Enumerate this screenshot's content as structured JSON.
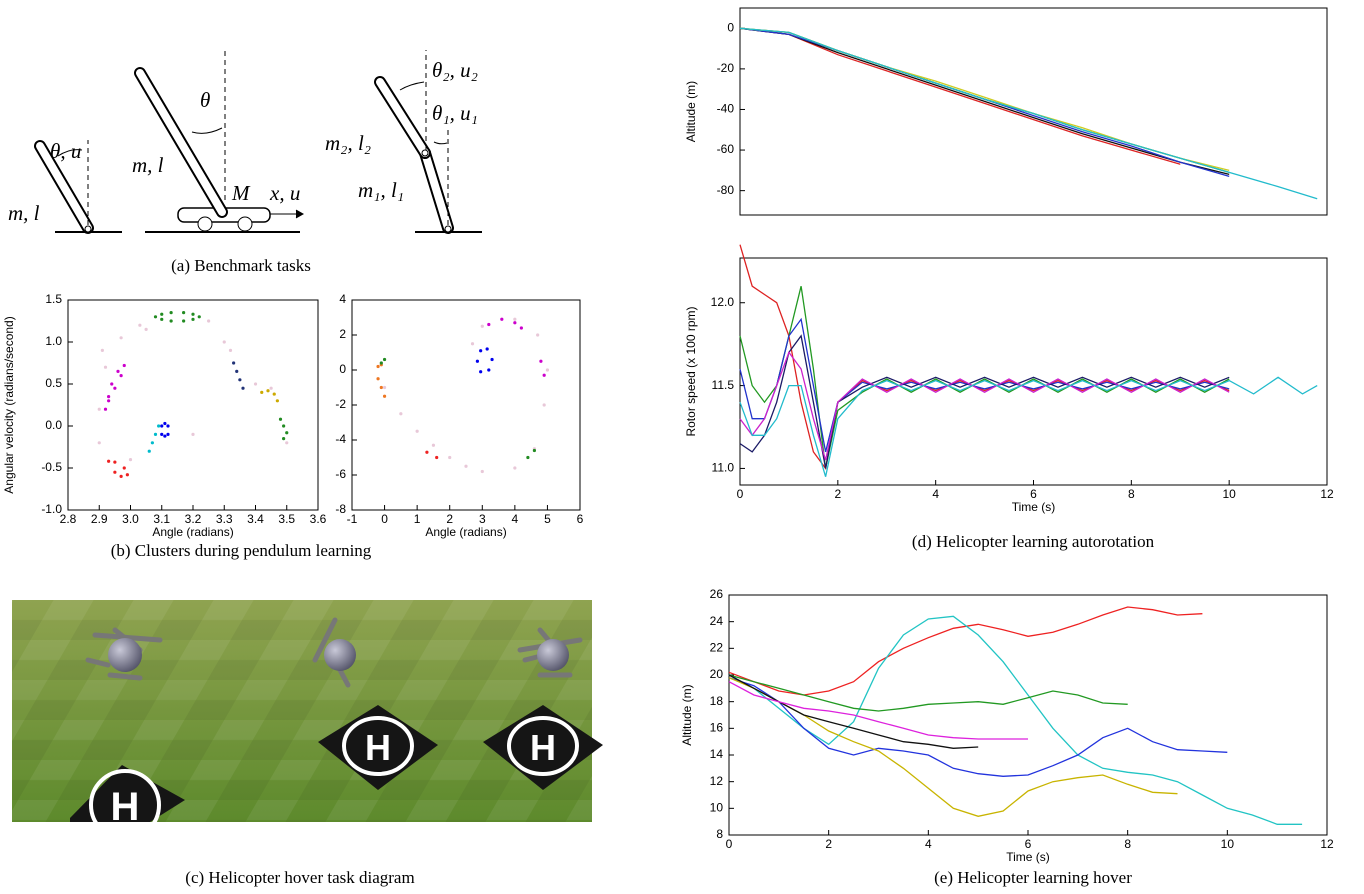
{
  "captions": {
    "a": "(a) Benchmark tasks",
    "b": "(b) Clusters during pendulum learning",
    "c": "(c) Helicopter hover task diagram",
    "d": "(d) Helicopter learning autorotation",
    "e": "(e) Helicopter learning hover"
  },
  "diagram": {
    "labels": [
      "θ, u",
      "m, l",
      "θ",
      "m, l",
      "M",
      "x, u",
      "θ₂, u₂",
      "θ₁, u₁",
      "m₂, l₂",
      "m₁, l₁"
    ]
  },
  "chart_data": [
    {
      "type": "scatter",
      "ylabel": "Angular velocity (radians/second)",
      "xlabel": "Angle (radians)",
      "xlim": [
        2.8,
        3.6
      ],
      "ylim": [
        -1,
        1.5
      ],
      "xticks": [
        2.8,
        2.9,
        {
          "value": 3,
          "label": "3.0"
        },
        3.1,
        3.2,
        3.3,
        3.4,
        3.5,
        3.6
      ],
      "yticks": [
        {
          "value": -1,
          "label": "-1.0"
        },
        -0.5,
        {
          "value": 0,
          "label": "0.0"
        },
        0.5,
        {
          "value": 1,
          "label": "1.0"
        },
        1.5
      ],
      "series": [
        {
          "color": "#e8c8d8",
          "x": [
            2.9,
            2.91,
            2.97,
            3.03,
            3.25,
            3.3,
            3.32,
            3.4,
            3.45,
            3.5,
            2.9,
            3.0,
            3.2,
            2.92,
            3.05
          ],
          "values": [
            0.2,
            0.9,
            1.05,
            1.2,
            1.25,
            1.0,
            0.9,
            0.5,
            0.45,
            -0.2,
            -0.2,
            -0.4,
            -0.1,
            0.7,
            1.15
          ]
        },
        {
          "color": "#228b22",
          "x": [
            3.08,
            3.1,
            3.13,
            3.17,
            3.2,
            3.22,
            3.2,
            3.17,
            3.13,
            3.1
          ],
          "values": [
            1.3,
            1.33,
            1.35,
            1.35,
            1.33,
            1.3,
            1.27,
            1.25,
            1.25,
            1.27
          ]
        },
        {
          "color": "#cc00cc",
          "x": [
            2.92,
            2.93,
            2.95,
            2.97,
            2.98,
            2.96,
            2.94,
            2.93
          ],
          "values": [
            0.2,
            0.3,
            0.45,
            0.6,
            0.72,
            0.65,
            0.5,
            0.35
          ]
        },
        {
          "color": "#0000ee",
          "x": [
            3.1,
            3.1,
            3.11,
            3.12,
            3.12,
            3.11
          ],
          "values": [
            -0.1,
            0.0,
            0.03,
            0.0,
            -0.1,
            -0.12
          ]
        },
        {
          "color": "#ee2222",
          "x": [
            2.93,
            2.95,
            2.98,
            2.99,
            2.97,
            2.95
          ],
          "values": [
            -0.42,
            -0.43,
            -0.5,
            -0.58,
            -0.6,
            -0.55
          ]
        },
        {
          "color": "#00bbcc",
          "x": [
            3.06,
            3.07,
            3.08,
            3.09
          ],
          "values": [
            -0.3,
            -0.2,
            -0.1,
            0.0
          ]
        },
        {
          "color": "#223377",
          "x": [
            3.33,
            3.34,
            3.35,
            3.36
          ],
          "values": [
            0.75,
            0.65,
            0.55,
            0.45
          ]
        },
        {
          "color": "#ccaa00",
          "x": [
            3.42,
            3.44,
            3.46,
            3.47
          ],
          "values": [
            0.4,
            0.42,
            0.38,
            0.3
          ]
        },
        {
          "color": "#228b22",
          "x": [
            3.48,
            3.49,
            3.5,
            3.49
          ],
          "values": [
            0.08,
            0.0,
            -0.08,
            -0.15
          ]
        }
      ]
    },
    {
      "type": "scatter",
      "xlabel": "Angle (radians)",
      "xlim": [
        -1,
        6
      ],
      "ylim": [
        -8,
        4
      ],
      "xticks": [
        -1,
        0,
        1,
        2,
        3,
        4,
        5,
        6
      ],
      "yticks": [
        -8,
        -6,
        -4,
        -2,
        0,
        2,
        4
      ],
      "series": [
        {
          "color": "#e8c8d8",
          "x": [
            0,
            0.5,
            1,
            2,
            3,
            4,
            4.6,
            4.9,
            5,
            4.7,
            4,
            3,
            2.7,
            1.5,
            2.5
          ],
          "values": [
            -1,
            -2.5,
            -3.5,
            -5,
            -5.8,
            -5.6,
            -4.5,
            -2,
            0,
            2,
            2.9,
            2.5,
            1.5,
            -4.3,
            -5.5
          ]
        },
        {
          "color": "#0000ee",
          "x": [
            2.85,
            2.95,
            3.15,
            3.3,
            3.2,
            2.95
          ],
          "values": [
            0.5,
            1.1,
            1.2,
            0.6,
            0,
            -0.1
          ]
        },
        {
          "color": "#cc00cc",
          "x": [
            3.2,
            3.6,
            4.0,
            4.2,
            4.8,
            4.9
          ],
          "values": [
            2.6,
            2.9,
            2.7,
            2.4,
            0.5,
            -0.3
          ]
        },
        {
          "color": "#ee7722",
          "x": [
            -0.2,
            -0.1,
            0.0,
            -0.1,
            -0.2
          ],
          "values": [
            -0.5,
            -1,
            -1.5,
            0.3,
            0.2
          ]
        },
        {
          "color": "#228b22",
          "x": [
            -0.1,
            0,
            4.4,
            4.6
          ],
          "values": [
            0.4,
            0.6,
            -5,
            -4.6
          ]
        },
        {
          "color": "#ee2222",
          "x": [
            1.3,
            1.6
          ],
          "values": [
            -4.7,
            -5
          ]
        }
      ]
    },
    {
      "type": "line",
      "ylabel": "Altitude (m)",
      "xlim": [
        0,
        12
      ],
      "ylim": [
        -92,
        10
      ],
      "yticks": [
        0,
        -20,
        -40,
        -60,
        -80
      ],
      "x": [
        0,
        1,
        2,
        3,
        4,
        5,
        6,
        7,
        8,
        9,
        10,
        11,
        11.8
      ],
      "series": [
        {
          "color": "#dd2222",
          "values": [
            0,
            -3,
            -13,
            -21,
            -29,
            -37,
            -45,
            -53,
            -60,
            -67,
            null,
            null,
            null
          ]
        },
        {
          "color": "#111111",
          "values": [
            0,
            -3,
            -12,
            -20,
            -28,
            -36,
            -44,
            -52,
            -59,
            -66,
            -72,
            null,
            null
          ]
        },
        {
          "color": "#2233cc",
          "values": [
            0,
            -3,
            -11,
            -19,
            -27,
            -35,
            -43,
            -51,
            -58,
            -66,
            -73,
            null,
            null
          ]
        },
        {
          "color": "#229922",
          "values": [
            0,
            -2,
            -11,
            -19,
            -27,
            -35,
            -42,
            -50,
            -57,
            -64,
            -71,
            null,
            null
          ]
        },
        {
          "color": "#cccc22",
          "values": [
            0,
            -2,
            -11,
            -19,
            -26,
            -34,
            -42,
            -49,
            -57,
            -64,
            -70,
            null,
            null
          ]
        },
        {
          "color": "#22bbcc",
          "values": [
            0,
            -2,
            -11,
            -19,
            -27,
            -35,
            -42,
            -50,
            -57,
            -64,
            -71,
            -78,
            -84
          ]
        }
      ]
    },
    {
      "type": "line",
      "ylabel": "Rotor speed (x 100 rpm)",
      "xlabel": "Time (s)",
      "xlim": [
        0,
        12
      ],
      "ylim": [
        10.9,
        12.27
      ],
      "xticks": [
        0,
        2,
        4,
        6,
        8,
        10,
        12
      ],
      "yticks": [
        {
          "value": 11,
          "label": "11.0"
        },
        11.5,
        {
          "value": 12,
          "label": "12.0"
        }
      ],
      "x": [
        0,
        0.25,
        0.5,
        0.75,
        1,
        1.25,
        1.5,
        1.75,
        2,
        2.5,
        3,
        3.5,
        4,
        4.5,
        5,
        5.5,
        6,
        6.5,
        7,
        7.5,
        8,
        8.5,
        9,
        9.5,
        10,
        10.5,
        11,
        11.5,
        11.8
      ],
      "series": [
        {
          "color": "#dd2222",
          "values": [
            12.35,
            12.1,
            12.05,
            12.0,
            11.8,
            11.4,
            11.1,
            11.0,
            11.4,
            11.53,
            11.47,
            11.53,
            11.47,
            11.53,
            11.47,
            11.53,
            11.47,
            11.53,
            11.47,
            11.53,
            11.47,
            11.53,
            11.47,
            11.53,
            11.47,
            null,
            null,
            null,
            null
          ]
        },
        {
          "color": "#229922",
          "values": [
            11.8,
            11.5,
            11.4,
            11.5,
            11.8,
            12.1,
            11.6,
            11.0,
            11.35,
            11.46,
            11.54,
            11.46,
            11.54,
            11.46,
            11.54,
            11.46,
            11.54,
            11.46,
            11.54,
            11.46,
            11.54,
            11.46,
            11.54,
            11.46,
            11.54,
            null,
            null,
            null,
            null
          ]
        },
        {
          "color": "#2233cc",
          "values": [
            11.6,
            11.3,
            11.3,
            11.5,
            11.8,
            11.9,
            11.5,
            11.1,
            11.4,
            11.52,
            11.48,
            11.52,
            11.48,
            11.52,
            11.48,
            11.52,
            11.48,
            11.52,
            11.48,
            11.52,
            11.48,
            11.52,
            11.48,
            11.52,
            11.48,
            null,
            null,
            null,
            null
          ]
        },
        {
          "color": "#1a1a66",
          "values": [
            11.15,
            11.1,
            11.2,
            11.4,
            11.7,
            11.8,
            11.4,
            11.0,
            11.4,
            11.49,
            11.55,
            11.49,
            11.55,
            11.49,
            11.55,
            11.49,
            11.55,
            11.49,
            11.55,
            11.49,
            11.55,
            11.49,
            11.55,
            11.49,
            11.55,
            null,
            null,
            null,
            null
          ]
        },
        {
          "color": "#cc22cc",
          "values": [
            11.3,
            11.2,
            11.3,
            11.5,
            11.7,
            11.6,
            11.3,
            11.05,
            11.4,
            11.54,
            11.46,
            11.54,
            11.46,
            11.54,
            11.46,
            11.54,
            11.46,
            11.54,
            11.46,
            11.54,
            11.46,
            11.54,
            11.46,
            11.54,
            11.46,
            null,
            null,
            null,
            null
          ]
        },
        {
          "color": "#22bbcc",
          "values": [
            11.4,
            11.2,
            11.2,
            11.3,
            11.5,
            11.5,
            11.2,
            10.95,
            11.3,
            11.47,
            11.53,
            11.47,
            11.53,
            11.47,
            11.53,
            11.47,
            11.53,
            11.47,
            11.53,
            11.47,
            11.53,
            11.47,
            11.53,
            11.47,
            11.53,
            11.45,
            11.55,
            11.45,
            11.5
          ]
        }
      ]
    },
    {
      "type": "line",
      "ylabel": "Altitude (m)",
      "xlabel": "Time (s)",
      "xlim": [
        0,
        12
      ],
      "ylim": [
        8,
        26
      ],
      "xticks": [
        0,
        2,
        4,
        6,
        8,
        10,
        12
      ],
      "yticks": [
        8,
        10,
        12,
        14,
        16,
        18,
        20,
        22,
        24,
        26
      ],
      "x": [
        0,
        0.5,
        1,
        1.5,
        2,
        2.5,
        3,
        3.5,
        4,
        4.5,
        5,
        5.5,
        6,
        6.5,
        7,
        7.5,
        8,
        8.5,
        9,
        9.5,
        10,
        10.5,
        11,
        11.5
      ],
      "series": [
        {
          "color": "#ee2222",
          "values": [
            20.2,
            19.5,
            18.8,
            18.5,
            18.8,
            19.5,
            21,
            22,
            22.8,
            23.5,
            23.8,
            23.4,
            22.9,
            23.2,
            23.8,
            24.5,
            25.1,
            24.9,
            24.5,
            24.6,
            null,
            null,
            null,
            null
          ]
        },
        {
          "color": "#22c4c4",
          "values": [
            20.0,
            19,
            17.5,
            16,
            14.8,
            16.5,
            20.5,
            23,
            24.2,
            24.4,
            23,
            21,
            18.5,
            16,
            14,
            13,
            12.7,
            12.5,
            12,
            11,
            10,
            9.5,
            8.8,
            8.8
          ]
        },
        {
          "color": "#2233dd",
          "values": [
            19.8,
            19.2,
            18,
            16,
            14.5,
            14,
            14.5,
            14.3,
            14,
            13,
            12.6,
            12.4,
            12.5,
            13.2,
            14,
            15.3,
            16,
            15,
            14.4,
            14.3,
            14.2,
            null,
            null,
            null
          ]
        },
        {
          "color": "#229922",
          "values": [
            20,
            19.5,
            19,
            18.5,
            18,
            17.5,
            17.3,
            17.5,
            17.8,
            17.9,
            18,
            17.8,
            18.3,
            18.8,
            18.5,
            17.9,
            17.8,
            null,
            null,
            null,
            null,
            null,
            null,
            null
          ]
        },
        {
          "color": "#c8b400",
          "values": [
            19.8,
            19,
            18,
            17,
            15.8,
            15,
            14.3,
            13,
            11.5,
            10,
            9.4,
            9.8,
            11.3,
            12,
            12.3,
            12.5,
            11.8,
            11.2,
            11.1,
            null,
            null,
            null,
            null,
            null
          ]
        },
        {
          "color": "#111111",
          "values": [
            20,
            19,
            18,
            17,
            16.5,
            16,
            15.5,
            15,
            14.8,
            14.5,
            14.6,
            null,
            null,
            null,
            null,
            null,
            null,
            null,
            null,
            null,
            null,
            null,
            null,
            null
          ]
        },
        {
          "color": "#dd22dd",
          "values": [
            19.5,
            18.5,
            18,
            17.5,
            17.3,
            17,
            16.5,
            16,
            15.5,
            15.3,
            15.2,
            15.2,
            15.2,
            null,
            null,
            null,
            null,
            null,
            null,
            null,
            null,
            null,
            null,
            null
          ]
        }
      ]
    }
  ]
}
